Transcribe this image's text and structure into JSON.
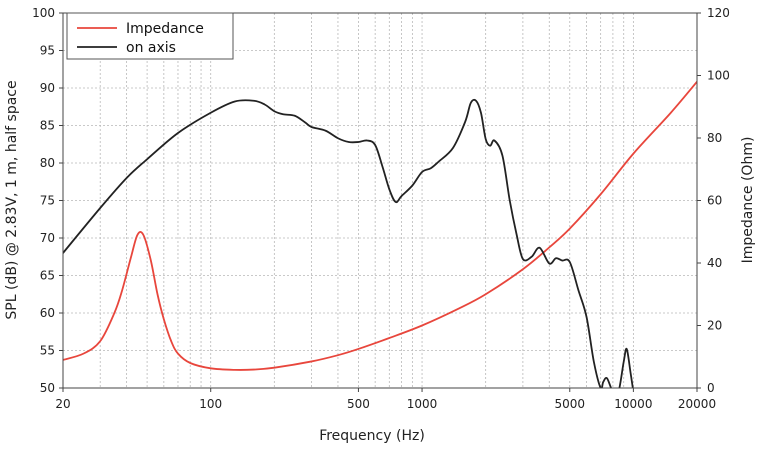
{
  "chart_data": {
    "type": "line",
    "title": "",
    "xlabel": "Frequency (Hz)",
    "ylabel_left": "SPL (dB) @ 2.83V, 1 m, half space",
    "ylabel_right": "Impedance (Ohm)",
    "x_scale": "log",
    "xlim": [
      20,
      20000
    ],
    "ylim_left": [
      50,
      100
    ],
    "ylim_right": [
      0,
      120
    ],
    "x_ticks": [
      20,
      100,
      500,
      1000,
      5000,
      10000,
      20000
    ],
    "x_tick_labels": [
      "20",
      "100",
      "500",
      "1000",
      "5000",
      "10000",
      "20000"
    ],
    "y_left_ticks": [
      50,
      55,
      60,
      65,
      70,
      75,
      80,
      85,
      90,
      95,
      100
    ],
    "y_left_tick_labels": [
      "50",
      "55",
      "60",
      "65",
      "70",
      "75",
      "80",
      "85",
      "90",
      "95",
      "100"
    ],
    "y_right_ticks": [
      0,
      20,
      40,
      60,
      80,
      100,
      120
    ],
    "y_right_tick_labels": [
      "0",
      "20",
      "40",
      "60",
      "80",
      "100",
      "120"
    ],
    "grid": true,
    "legend_position": "top-left",
    "series": [
      {
        "name": "Impedance",
        "axis": "right",
        "color": "#e8463c",
        "x": [
          20,
          25,
          30,
          35,
          38,
          42,
          45,
          48,
          52,
          56,
          60,
          65,
          70,
          80,
          100,
          130,
          160,
          200,
          300,
          400,
          500,
          700,
          1000,
          1500,
          2000,
          3000,
          4000,
          5000,
          7000,
          10000,
          15000,
          20000
        ],
        "y": [
          9,
          11,
          15,
          24,
          31,
          42,
          49,
          49,
          41,
          30,
          22,
          15,
          11,
          8,
          6.3,
          5.8,
          5.9,
          6.5,
          8.5,
          10.5,
          12.5,
          16,
          20,
          25.5,
          30,
          38,
          45,
          51,
          62,
          75,
          88,
          98
        ]
      },
      {
        "name": "on axis",
        "axis": "left",
        "color": "#222222",
        "x": [
          20,
          30,
          40,
          50,
          70,
          100,
          130,
          160,
          180,
          200,
          220,
          250,
          280,
          300,
          350,
          400,
          450,
          500,
          550,
          600,
          650,
          700,
          750,
          800,
          900,
          1000,
          1100,
          1200,
          1400,
          1600,
          1700,
          1800,
          1900,
          2000,
          2100,
          2200,
          2400,
          2600,
          2800,
          3000,
          3300,
          3600,
          4000,
          4300,
          4600,
          5000,
          5500,
          6000,
          6500,
          7000,
          7200,
          7500,
          8000,
          8500,
          9000,
          9300,
          9700,
          10000
        ],
        "y": [
          68,
          74,
          78,
          80.5,
          84,
          86.7,
          88.2,
          88.3,
          87.8,
          86.9,
          86.5,
          86.3,
          85.4,
          84.8,
          84.3,
          83.3,
          82.8,
          82.8,
          83,
          82.4,
          79.5,
          76.5,
          74.8,
          75.6,
          77,
          78.8,
          79.3,
          80.2,
          82,
          85.5,
          88,
          88.3,
          86.7,
          83.2,
          82.3,
          83,
          81,
          75,
          70.5,
          67.2,
          67.5,
          68.7,
          66.6,
          67.3,
          67,
          66.8,
          63,
          59.5,
          53.5,
          50,
          50.8,
          51.3,
          49.5,
          49.5,
          53.5,
          55.2,
          52,
          49.5
        ]
      }
    ]
  }
}
